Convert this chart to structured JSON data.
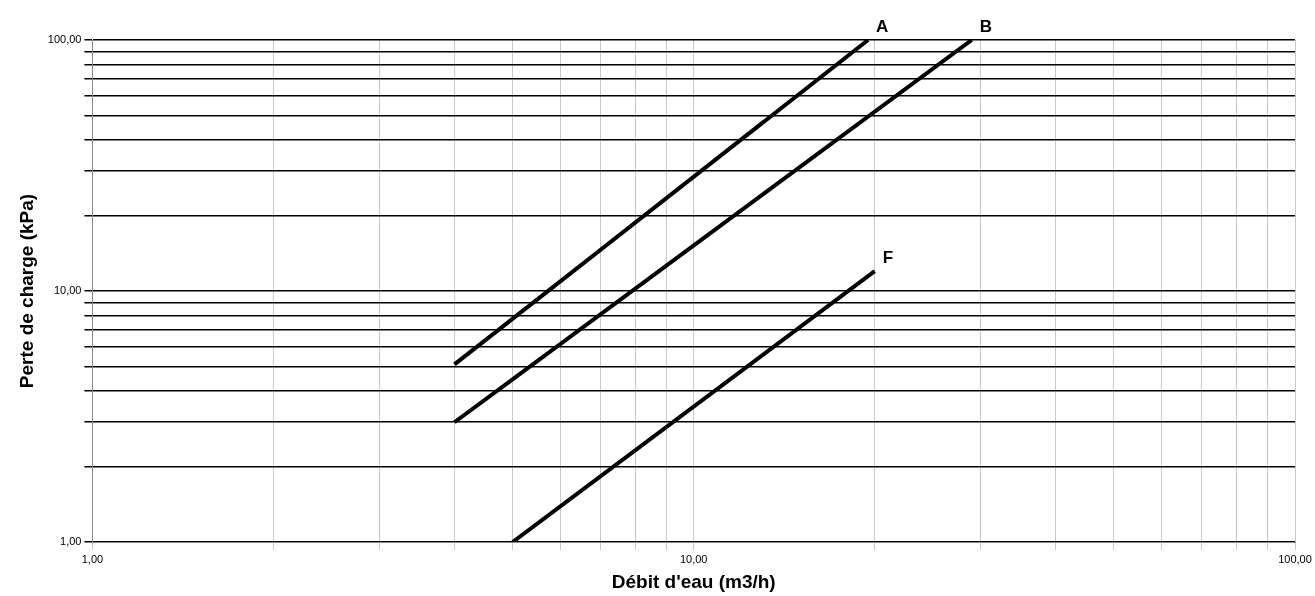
{
  "chart_data": {
    "type": "line",
    "xlabel": "Débit d'eau (m3/h)",
    "ylabel": "Perte de charge (kPa)",
    "log": "xy",
    "grid": true,
    "legend": false,
    "marker": "none",
    "line_style": "solid",
    "xlim": [
      1,
      100
    ],
    "ylim": [
      1,
      100
    ],
    "xticks": [
      {
        "value": 1,
        "label": "1,00"
      },
      {
        "value": 2,
        "label": null
      },
      {
        "value": 3,
        "label": null
      },
      {
        "value": 4,
        "label": null
      },
      {
        "value": 5,
        "label": null
      },
      {
        "value": 6,
        "label": null
      },
      {
        "value": 7,
        "label": null
      },
      {
        "value": 8,
        "label": null
      },
      {
        "value": 9,
        "label": null
      },
      {
        "value": 10,
        "label": "10,00"
      },
      {
        "value": 20,
        "label": null
      },
      {
        "value": 30,
        "label": null
      },
      {
        "value": 40,
        "label": null
      },
      {
        "value": 50,
        "label": null
      },
      {
        "value": 60,
        "label": null
      },
      {
        "value": 70,
        "label": null
      },
      {
        "value": 80,
        "label": null
      },
      {
        "value": 90,
        "label": null
      },
      {
        "value": 100,
        "label": "100,00"
      }
    ],
    "yticks": [
      {
        "value": 1,
        "label": "1,00"
      },
      {
        "value": 2,
        "label": null
      },
      {
        "value": 3,
        "label": null
      },
      {
        "value": 4,
        "label": null
      },
      {
        "value": 5,
        "label": null
      },
      {
        "value": 6,
        "label": null
      },
      {
        "value": 7,
        "label": null
      },
      {
        "value": 8,
        "label": null
      },
      {
        "value": 9,
        "label": null
      },
      {
        "value": 10,
        "label": "10,00"
      },
      {
        "value": 20,
        "label": null
      },
      {
        "value": 30,
        "label": null
      },
      {
        "value": 40,
        "label": null
      },
      {
        "value": 50,
        "label": null
      },
      {
        "value": 60,
        "label": null
      },
      {
        "value": 70,
        "label": null
      },
      {
        "value": 80,
        "label": null
      },
      {
        "value": 90,
        "label": null
      },
      {
        "value": 100,
        "label": "100,00"
      }
    ],
    "series": [
      {
        "name": "A",
        "color": "#000000",
        "x": [
          4,
          19.5
        ],
        "values": [
          5.1,
          100
        ]
      },
      {
        "name": "B",
        "color": "#000000",
        "x": [
          4,
          29
        ],
        "values": [
          3,
          100
        ]
      },
      {
        "name": "F",
        "color": "#000000",
        "x": [
          5,
          20
        ],
        "values": [
          1,
          12
        ]
      }
    ]
  }
}
